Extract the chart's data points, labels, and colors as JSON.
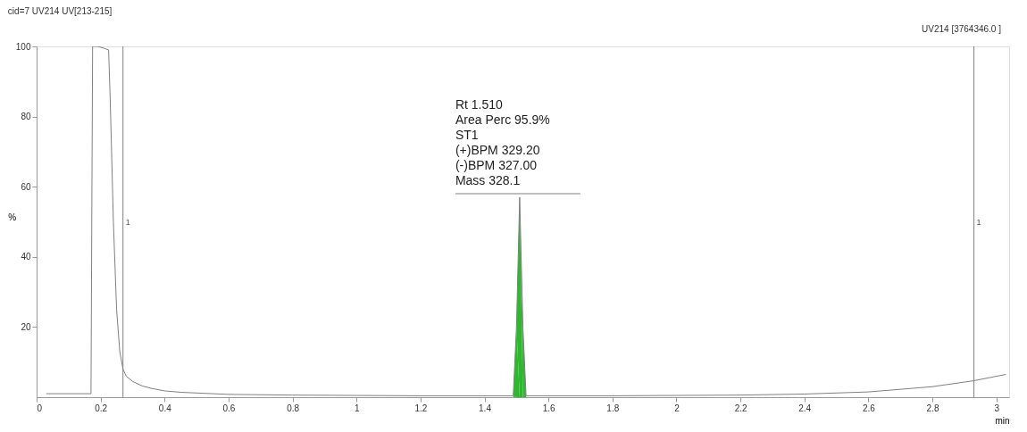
{
  "chart_data": {
    "type": "line",
    "title": "cid=7 UV214 UV[213-215]",
    "xlabel": "min",
    "ylabel": "%",
    "x": [
      0.03,
      0.17,
      0.175,
      0.19,
      0.21,
      0.225,
      0.23,
      0.24,
      0.25,
      0.26,
      0.27,
      0.28,
      0.3,
      0.33,
      0.36,
      0.4,
      0.45,
      0.5,
      0.6,
      0.8,
      1.0,
      1.2,
      1.49,
      1.5,
      1.51,
      1.52,
      1.53,
      1.8,
      2.0,
      2.2,
      2.4,
      2.6,
      2.8,
      2.93,
      3.03
    ],
    "series": [
      {
        "color": "#808080",
        "values": [
          1,
          1,
          100,
          100,
          99.5,
          99,
          85,
          50,
          25,
          13,
          8,
          6,
          4.5,
          3.2,
          2.5,
          1.8,
          1.4,
          1.2,
          0.8,
          0.6,
          0.5,
          0.4,
          0.4,
          20,
          57,
          20,
          0.4,
          0.4,
          0.5,
          0.6,
          0.9,
          1.5,
          3,
          4.7,
          6.5
        ]
      },
      {
        "type": "area",
        "color": "#2db82d",
        "x": [
          1.49,
          1.5,
          1.51,
          1.52,
          1.53
        ],
        "values": [
          0.4,
          20,
          57,
          20,
          0.4
        ]
      }
    ],
    "xlim": [
      0,
      3.04
    ],
    "ylim": [
      0,
      100
    ],
    "xticks": [
      0,
      0.2,
      0.4,
      0.6,
      0.8,
      1,
      1.2,
      1.4,
      1.6,
      1.8,
      2,
      2.2,
      2.4,
      2.6,
      2.8,
      3
    ],
    "yticks": [
      20,
      40,
      60,
      80,
      100
    ],
    "ref_lines": [
      {
        "axis": "x",
        "value": 0.27,
        "color": "#808080"
      },
      {
        "axis": "x",
        "value": 2.93,
        "color": "#808080"
      }
    ],
    "annotations": [
      "UV214 [3764346.0 ]",
      {
        "text": "Rt 1.510\nArea Perc 95.9%\nST1\n(+)BPM 329.20\n(-)BPM 327.00\nMass 328.1",
        "x": 1.51,
        "y": 57
      },
      {
        "text": "1",
        "x": 0.27,
        "y": 50
      },
      {
        "text": "1",
        "x": 2.93,
        "y": 50
      }
    ],
    "grid": false
  }
}
